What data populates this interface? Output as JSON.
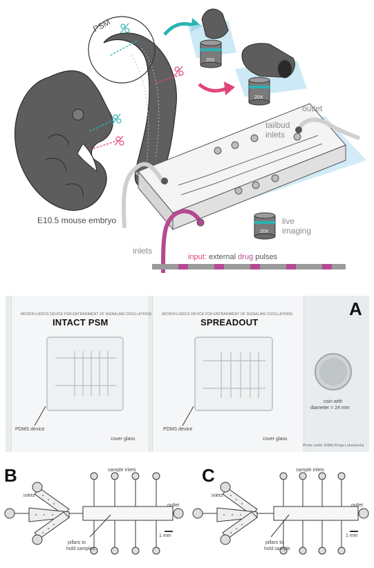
{
  "colors": {
    "accent_cyan": "#2bb3b3",
    "accent_pink": "#e0457d",
    "drug_purple": "#b54a93",
    "embryo_gray": "#5d5d5d",
    "glass_blue": "#bfe3f3",
    "photo_bg": "#e9ecee"
  },
  "top": {
    "psm_label": "PSM",
    "embryo_label": "E10.5 mouse embryo",
    "objective_label_1": "20X",
    "objective_label_2": "20X",
    "objective_label_3": "20X",
    "outlet_label": "outlet",
    "tailbud_inlets_label_1": "tailbud",
    "tailbud_inlets_label_2": "inlets",
    "live_imaging_label_1": "live",
    "live_imaging_label_2": "imaging",
    "inlets_label": "inlets",
    "input_prefix": "input:",
    "input_mid": " external ",
    "input_drug": "drug",
    "input_suffix": " pulses"
  },
  "photo": {
    "panel_letter": "A",
    "left_chip": {
      "caption": "MICROFLUIDICS DEVICE FOR ENTRAINMENT OF SIGNALING OSCILLATIONS",
      "title": "INTACT PSM",
      "device_label": "PDMS device",
      "glass_label": "cover glass"
    },
    "right_chip": {
      "caption": "MICROFLUIDICS DEVICE FOR ENTRAINMENT OF SIGNALING OSCILLATIONS",
      "title": "SPREADOUT",
      "device_label": "PDMS device",
      "glass_label": "cover glass"
    },
    "coin_label_1": "coin with",
    "coin_label_2": "diameter = 24 mm",
    "credit": "Photo credit: EMBL/Kinga Lubowiecka"
  },
  "schematic_b": {
    "panel_letter": "B",
    "sample_inlets": "sample inlets",
    "inlets": "inlets",
    "outlet": "outlet",
    "scale": "1 mm",
    "pillars_1": "pillars to",
    "pillars_2": "hold samples"
  },
  "schematic_c": {
    "panel_letter": "C",
    "sample_inlets": "sample inlets",
    "inlets": "inlets",
    "outlet": "outlet",
    "scale": "1 mm",
    "pillars_1": "pillars to",
    "pillars_2": "hold sample"
  }
}
